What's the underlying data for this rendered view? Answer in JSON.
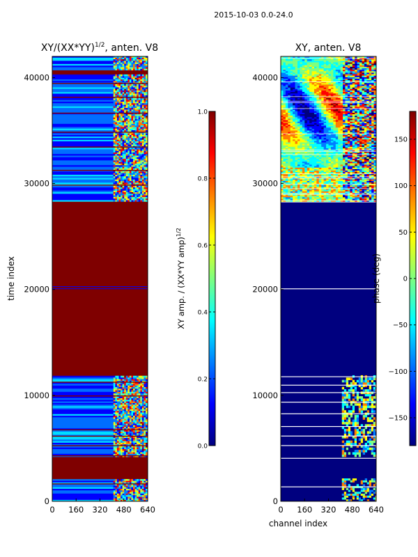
{
  "suptitle": "2015-10-03 0.0-24.0",
  "colormap_stops": [
    "#00007f",
    "#0000ff",
    "#007fff",
    "#00ffff",
    "#7fff7f",
    "#ffff00",
    "#ff7f00",
    "#ff0000",
    "#7f0000"
  ],
  "chart_data": [
    {
      "type": "heatmap",
      "title_main": "XY/(XX*YY)",
      "title_sup": "1/2",
      "title_rest": ", anten. V8",
      "xlabel": "",
      "ylabel": "time index",
      "xlim": [
        0,
        640
      ],
      "ylim": [
        0,
        42000
      ],
      "xticks": [
        0,
        160,
        320,
        480,
        640
      ],
      "yticks": [
        0,
        10000,
        20000,
        30000,
        40000
      ],
      "rfi_channel_band": [
        410,
        640
      ],
      "dominant_bands": [
        {
          "from": 0,
          "to": 1300,
          "level": "mixed"
        },
        {
          "from": 2000,
          "to": 4200,
          "level": "saturated"
        },
        {
          "from": 4200,
          "to": 11800,
          "level": "low"
        },
        {
          "from": 11800,
          "to": 28300,
          "level": "saturated"
        },
        {
          "from": 28300,
          "to": 40200,
          "level": "low"
        },
        {
          "from": 40200,
          "to": 40700,
          "level": "saturated"
        },
        {
          "from": 40700,
          "to": 42000,
          "level": "low"
        }
      ],
      "colorbar": {
        "label": "XY amp. / (XX*YY amp)",
        "label_sup": "1/2",
        "range": [
          0.0,
          1.0
        ],
        "tick_values": [
          0.0,
          0.2,
          0.4,
          0.6,
          0.8,
          1.0
        ],
        "tick_labels": [
          "0.0",
          "0.2",
          "0.4",
          "0.6",
          "0.8",
          "1.0"
        ]
      }
    },
    {
      "type": "heatmap",
      "title": "XY, anten. V8",
      "xlabel": "channel index",
      "ylabel": "",
      "xlim": [
        0,
        640
      ],
      "ylim": [
        0,
        42000
      ],
      "xticks": [
        0,
        160,
        320,
        480,
        640
      ],
      "yticks": [
        0,
        10000,
        20000,
        30000,
        40000
      ],
      "rfi_channel_band": [
        410,
        640
      ],
      "dominant_bands": [
        {
          "from": 0,
          "to": 28300,
          "level": "mostly -180 deg"
        },
        {
          "from": 28300,
          "to": 42000,
          "level": "varying phase"
        }
      ],
      "colorbar": {
        "label": "phase (deg)",
        "range": [
          -180,
          180
        ],
        "tick_values": [
          -150,
          -100,
          -50,
          0,
          50,
          100,
          150
        ],
        "tick_labels": [
          "−150",
          "−100",
          "−50",
          "0",
          "50",
          "100",
          "150"
        ]
      }
    }
  ]
}
